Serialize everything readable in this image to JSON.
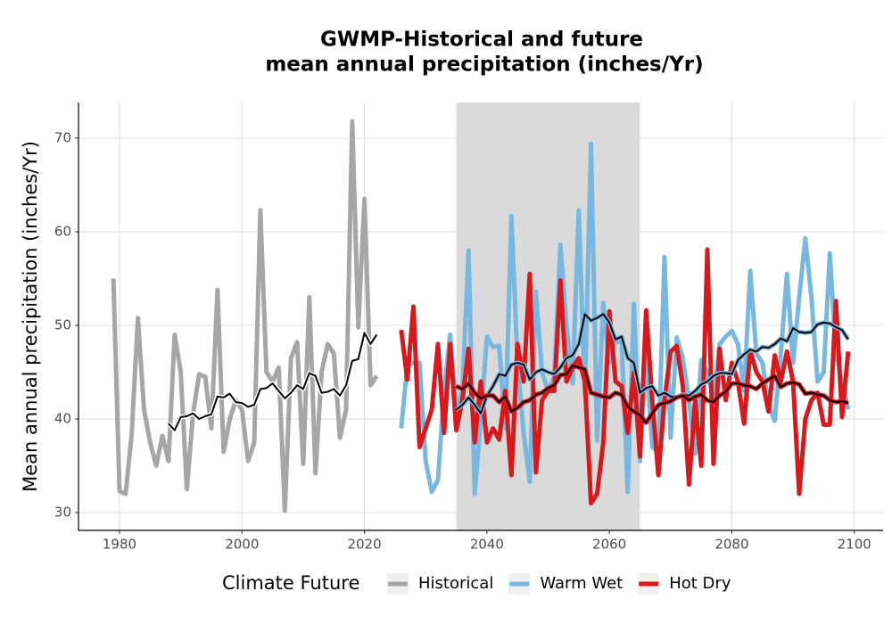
{
  "chart_data": {
    "type": "line",
    "title": [
      "GWMP-Historical and future",
      "mean annual precipitation (inches/Yr)"
    ],
    "y_label": "Mean annual precipitation (inches/Yr)",
    "legend_title": "Climate Future",
    "legend_position": "bottom",
    "grid": true,
    "xlim": [
      1973.3,
      2104.7
    ],
    "ylim": [
      28.1,
      73.8
    ],
    "xticks": [
      1980,
      2000,
      2020,
      2040,
      2060,
      2080,
      2100
    ],
    "yticks": [
      30,
      40,
      50,
      60,
      70
    ],
    "shaded_region": {
      "xmin": 2035,
      "xmax": 2065,
      "color": "#dadada"
    },
    "smooth_color": "#000000",
    "series": [
      {
        "name": "Historical",
        "color": "#a6a6a6",
        "x": [
          1979,
          1980,
          1981,
          1982,
          1983,
          1984,
          1985,
          1986,
          1987,
          1988,
          1989,
          1990,
          1991,
          1992,
          1993,
          1994,
          1995,
          1996,
          1997,
          1998,
          1999,
          2000,
          2001,
          2002,
          2003,
          2004,
          2005,
          2006,
          2007,
          2008,
          2009,
          2010,
          2011,
          2012,
          2013,
          2014,
          2015,
          2016,
          2017,
          2018,
          2019,
          2020,
          2021,
          2022
        ],
        "values": [
          55,
          32.3,
          32,
          38.5,
          50.8,
          41,
          37.5,
          35,
          38.2,
          35.5,
          49,
          45,
          32.5,
          40.5,
          44.8,
          44.5,
          39,
          53.8,
          36.5,
          40,
          42,
          41,
          35.5,
          37.5,
          62.3,
          45,
          44,
          45.5,
          30.2,
          46.5,
          48.2,
          35.2,
          53,
          34.2,
          45,
          48,
          47,
          38,
          41,
          71.8,
          49.8,
          63.5,
          43.6,
          44.6
        ],
        "smooth_x": [
          1988,
          1989,
          1990,
          1991,
          1992,
          1993,
          1994,
          1995,
          1996,
          1997,
          1998,
          1999,
          2000,
          2001,
          2002,
          2003,
          2004,
          2005,
          2006,
          2007,
          2008,
          2009,
          2010,
          2011,
          2012,
          2013,
          2014,
          2015,
          2016,
          2017,
          2018,
          2019,
          2020,
          2021,
          2022
        ],
        "smooth_values": [
          39.5,
          38.8,
          40.2,
          40.3,
          40.6,
          40,
          40.3,
          40.5,
          42.4,
          42.3,
          42.7,
          41.8,
          41.7,
          41.3,
          41.5,
          43.2,
          43.3,
          43.8,
          43,
          42.2,
          42.8,
          43.6,
          43.2,
          44.9,
          44.6,
          42.8,
          42.9,
          43.2,
          42.5,
          43.6,
          46.2,
          46.4,
          49.2,
          48,
          49
        ]
      },
      {
        "name": "Warm Wet",
        "color": "#78b8e0",
        "x": [
          2026,
          2027,
          2028,
          2029,
          2030,
          2031,
          2032,
          2033,
          2034,
          2035,
          2036,
          2037,
          2038,
          2039,
          2040,
          2041,
          2042,
          2043,
          2044,
          2045,
          2046,
          2047,
          2048,
          2049,
          2050,
          2051,
          2052,
          2053,
          2054,
          2055,
          2056,
          2057,
          2058,
          2059,
          2060,
          2061,
          2062,
          2063,
          2064,
          2065,
          2066,
          2067,
          2068,
          2069,
          2070,
          2071,
          2072,
          2073,
          2074,
          2075,
          2076,
          2077,
          2078,
          2079,
          2080,
          2081,
          2082,
          2083,
          2084,
          2085,
          2086,
          2087,
          2088,
          2089,
          2090,
          2091,
          2092,
          2093,
          2094,
          2095,
          2096,
          2097,
          2098,
          2099
        ],
        "values": [
          39,
          45.7,
          46,
          46,
          35.5,
          32.2,
          33.5,
          43,
          49,
          41,
          43,
          58,
          32,
          40,
          48.8,
          47.7,
          47.8,
          39,
          61.7,
          46,
          38.5,
          33.3,
          53.6,
          45,
          43,
          44.5,
          58.6,
          50,
          43.8,
          62.3,
          42.5,
          69.4,
          37.7,
          52.4,
          46,
          48.3,
          48.2,
          32.2,
          52.3,
          35.5,
          47,
          37,
          36.5,
          57.3,
          38,
          48.7,
          46.5,
          42,
          36.3,
          46.3,
          45,
          42,
          48,
          48.8,
          49.4,
          48,
          43,
          55.8,
          47,
          46,
          41.5,
          39.8,
          47,
          55.5,
          46,
          53,
          59.3,
          53,
          44,
          45,
          57.7,
          47,
          44,
          41
        ],
        "smooth_x": [
          2035,
          2036,
          2037,
          2038,
          2039,
          2040,
          2041,
          2042,
          2043,
          2044,
          2045,
          2046,
          2047,
          2048,
          2049,
          2050,
          2051,
          2052,
          2053,
          2054,
          2055,
          2056,
          2057,
          2058,
          2059,
          2060,
          2061,
          2062,
          2063,
          2064,
          2065,
          2066,
          2067,
          2068,
          2069,
          2070,
          2071,
          2072,
          2073,
          2074,
          2075,
          2076,
          2077,
          2078,
          2079,
          2080,
          2081,
          2082,
          2083,
          2084,
          2085,
          2086,
          2087,
          2088,
          2089,
          2090,
          2091,
          2092,
          2093,
          2094,
          2095,
          2096,
          2097,
          2098,
          2099
        ],
        "smooth_values": [
          41,
          41.5,
          42.3,
          41.5,
          40.6,
          42.5,
          43.5,
          44.8,
          44.6,
          45.8,
          46,
          45.8,
          44.2,
          45,
          45.3,
          45,
          44.8,
          45.5,
          46.5,
          46.8,
          48,
          51.2,
          50.5,
          50.8,
          51.2,
          50.3,
          48.5,
          48.8,
          46.5,
          46,
          42.8,
          43.3,
          43.5,
          42.5,
          42.8,
          42.4,
          42.3,
          42.6,
          42.5,
          43,
          43.7,
          44,
          44.6,
          44.9,
          44.9,
          44.8,
          46.3,
          46.9,
          47.4,
          47.2,
          47.7,
          47.6,
          48,
          48.6,
          48.3,
          49.7,
          49.3,
          49.2,
          49.3,
          50.1,
          50.3,
          50.2,
          49.8,
          49.5,
          48.5
        ]
      },
      {
        "name": "Hot Dry",
        "color": "#d7191c",
        "x": [
          2026,
          2027,
          2028,
          2029,
          2030,
          2031,
          2032,
          2033,
          2034,
          2035,
          2036,
          2037,
          2038,
          2039,
          2040,
          2041,
          2042,
          2043,
          2044,
          2045,
          2046,
          2047,
          2048,
          2049,
          2050,
          2051,
          2052,
          2053,
          2054,
          2055,
          2056,
          2057,
          2058,
          2059,
          2060,
          2061,
          2062,
          2063,
          2064,
          2065,
          2066,
          2067,
          2068,
          2069,
          2070,
          2071,
          2072,
          2073,
          2074,
          2075,
          2076,
          2077,
          2078,
          2079,
          2080,
          2081,
          2082,
          2083,
          2084,
          2085,
          2086,
          2087,
          2088,
          2089,
          2090,
          2091,
          2092,
          2093,
          2094,
          2095,
          2096,
          2097,
          2098,
          2099
        ],
        "values": [
          49.5,
          44.2,
          52,
          37,
          39,
          41,
          48,
          38.5,
          48,
          38.8,
          42,
          47.5,
          37.5,
          44,
          37.5,
          39,
          37.8,
          43,
          34,
          48,
          44,
          55.5,
          34.3,
          42,
          43,
          43,
          54.8,
          44,
          45.5,
          46.5,
          44,
          31,
          32,
          37.5,
          51.5,
          44,
          43.5,
          38.5,
          45,
          36,
          51.6,
          42,
          34,
          42,
          47.2,
          47.8,
          43.5,
          33,
          42,
          35,
          58.1,
          35.2,
          47.5,
          42,
          46,
          44,
          39.5,
          47.3,
          45,
          44,
          40.8,
          46.8,
          44,
          47.2,
          44,
          32,
          40,
          42,
          42.8,
          39.4,
          39.4,
          52.6,
          40.2,
          47.2
        ],
        "smooth_x": [
          2035,
          2036,
          2037,
          2038,
          2039,
          2040,
          2041,
          2042,
          2043,
          2044,
          2045,
          2046,
          2047,
          2048,
          2049,
          2050,
          2051,
          2052,
          2053,
          2054,
          2055,
          2056,
          2057,
          2058,
          2059,
          2060,
          2061,
          2062,
          2063,
          2064,
          2065,
          2066,
          2067,
          2068,
          2069,
          2070,
          2071,
          2072,
          2073,
          2074,
          2075,
          2076,
          2077,
          2078,
          2079,
          2080,
          2081,
          2082,
          2083,
          2084,
          2085,
          2086,
          2087,
          2088,
          2089,
          2090,
          2091,
          2092,
          2093,
          2094,
          2095,
          2096,
          2097,
          2098,
          2099
        ],
        "smooth_values": [
          43.5,
          43.2,
          43.8,
          42.8,
          42.2,
          42.5,
          42.5,
          41.8,
          42.4,
          40.8,
          41.2,
          41.8,
          42,
          42.6,
          42.8,
          43.3,
          43.6,
          44.7,
          44.8,
          45.7,
          45.5,
          45.3,
          42.8,
          42.6,
          42.4,
          42.3,
          42.8,
          42.6,
          41.3,
          40.8,
          40.4,
          39.6,
          40.6,
          41.5,
          41.7,
          41.9,
          42.3,
          42.5,
          42,
          42.4,
          42.6,
          42,
          41.8,
          42.5,
          42.9,
          43.8,
          43.8,
          43.6,
          43.5,
          43.2,
          43.8,
          44.2,
          44.6,
          43.4,
          43.8,
          43.9,
          43.7,
          42.7,
          42.8,
          42.6,
          42.5,
          42,
          41.8,
          41.9,
          41.7
        ]
      }
    ]
  }
}
